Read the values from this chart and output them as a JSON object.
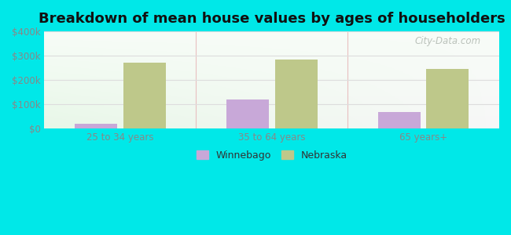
{
  "title": "Breakdown of mean house values by ages of householders",
  "categories": [
    "25 to 34 years",
    "35 to 64 years",
    "65 years+"
  ],
  "winnebago_values": [
    20000,
    120000,
    68000
  ],
  "nebraska_values": [
    270000,
    285000,
    245000
  ],
  "winnebago_color": "#c8a8d8",
  "nebraska_color": "#bec88a",
  "ylim": [
    0,
    400000
  ],
  "yticks": [
    0,
    100000,
    200000,
    300000,
    400000
  ],
  "ytick_labels": [
    "$0",
    "$100k",
    "$200k",
    "$300k",
    "$400k"
  ],
  "background_color": "#00e8e8",
  "legend_labels": [
    "Winnebago",
    "Nebraska"
  ],
  "title_fontsize": 13,
  "bar_width": 0.28,
  "watermark": "City-Data.com",
  "grid_color": "#dddddd",
  "tick_color": "#888888"
}
